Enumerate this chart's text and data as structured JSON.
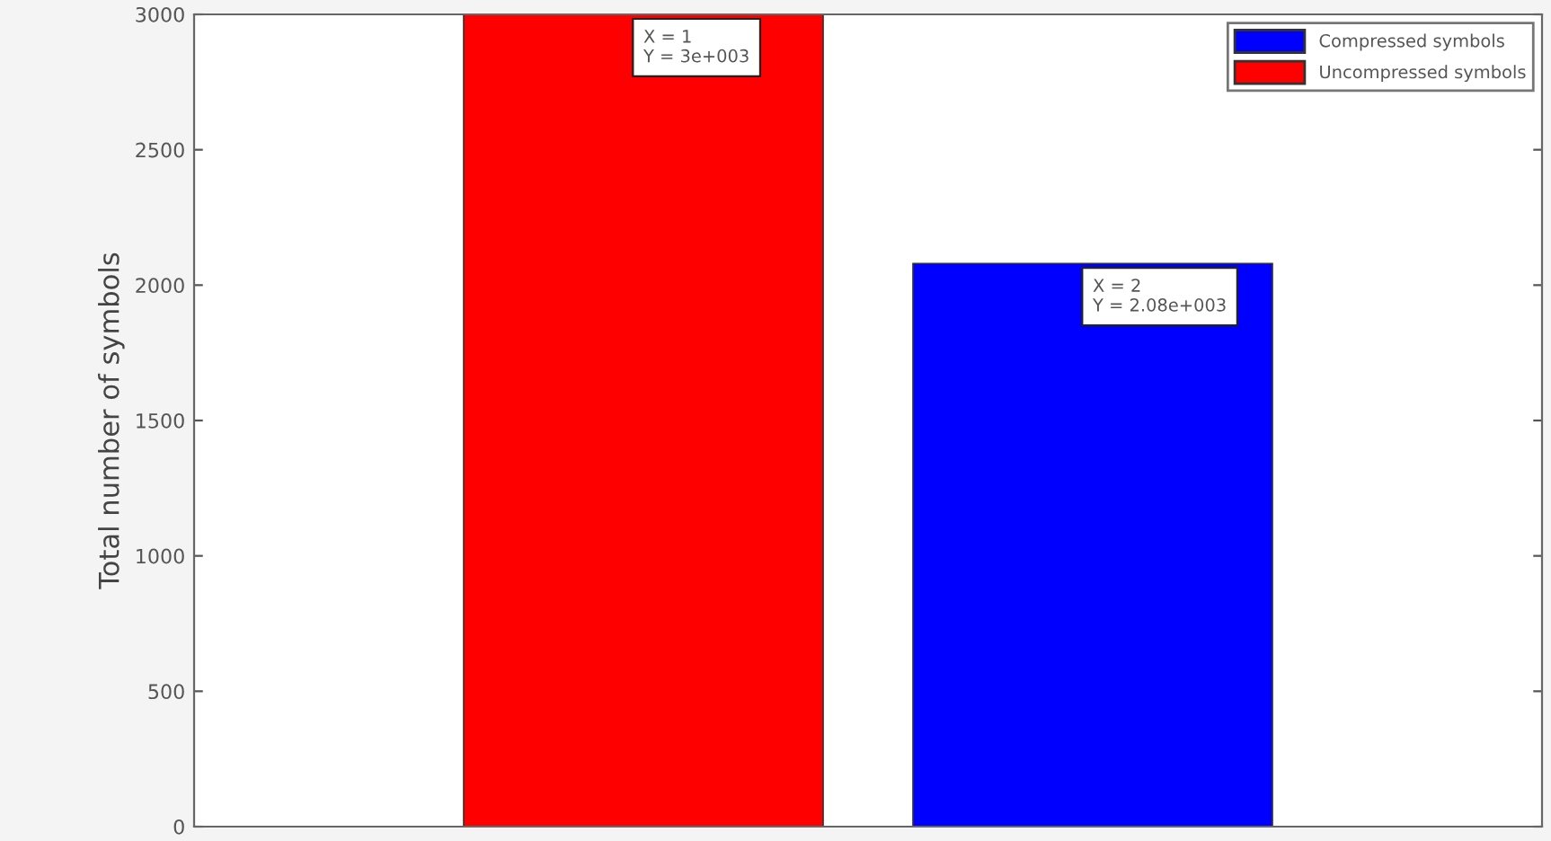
{
  "chart_data": {
    "type": "bar",
    "ylabel": "Total number of symbols",
    "categories": [
      null,
      null
    ],
    "series": [
      {
        "name": "Compressed symbols",
        "color": "#0000ff",
        "values": [
          null,
          2080
        ]
      },
      {
        "name": "Uncompressed symbols",
        "color": "#ff0000",
        "values": [
          3000,
          null
        ]
      }
    ],
    "ylim": [
      0,
      3000
    ],
    "yticks": [
      0,
      500,
      1000,
      1500,
      2000,
      2500,
      3000
    ],
    "tick_labels": "y",
    "grid": false,
    "legend": "top right",
    "annotations": [
      "X = 1\nY = 3e+003",
      "X = 2\nY = 2.08e+003"
    ]
  }
}
